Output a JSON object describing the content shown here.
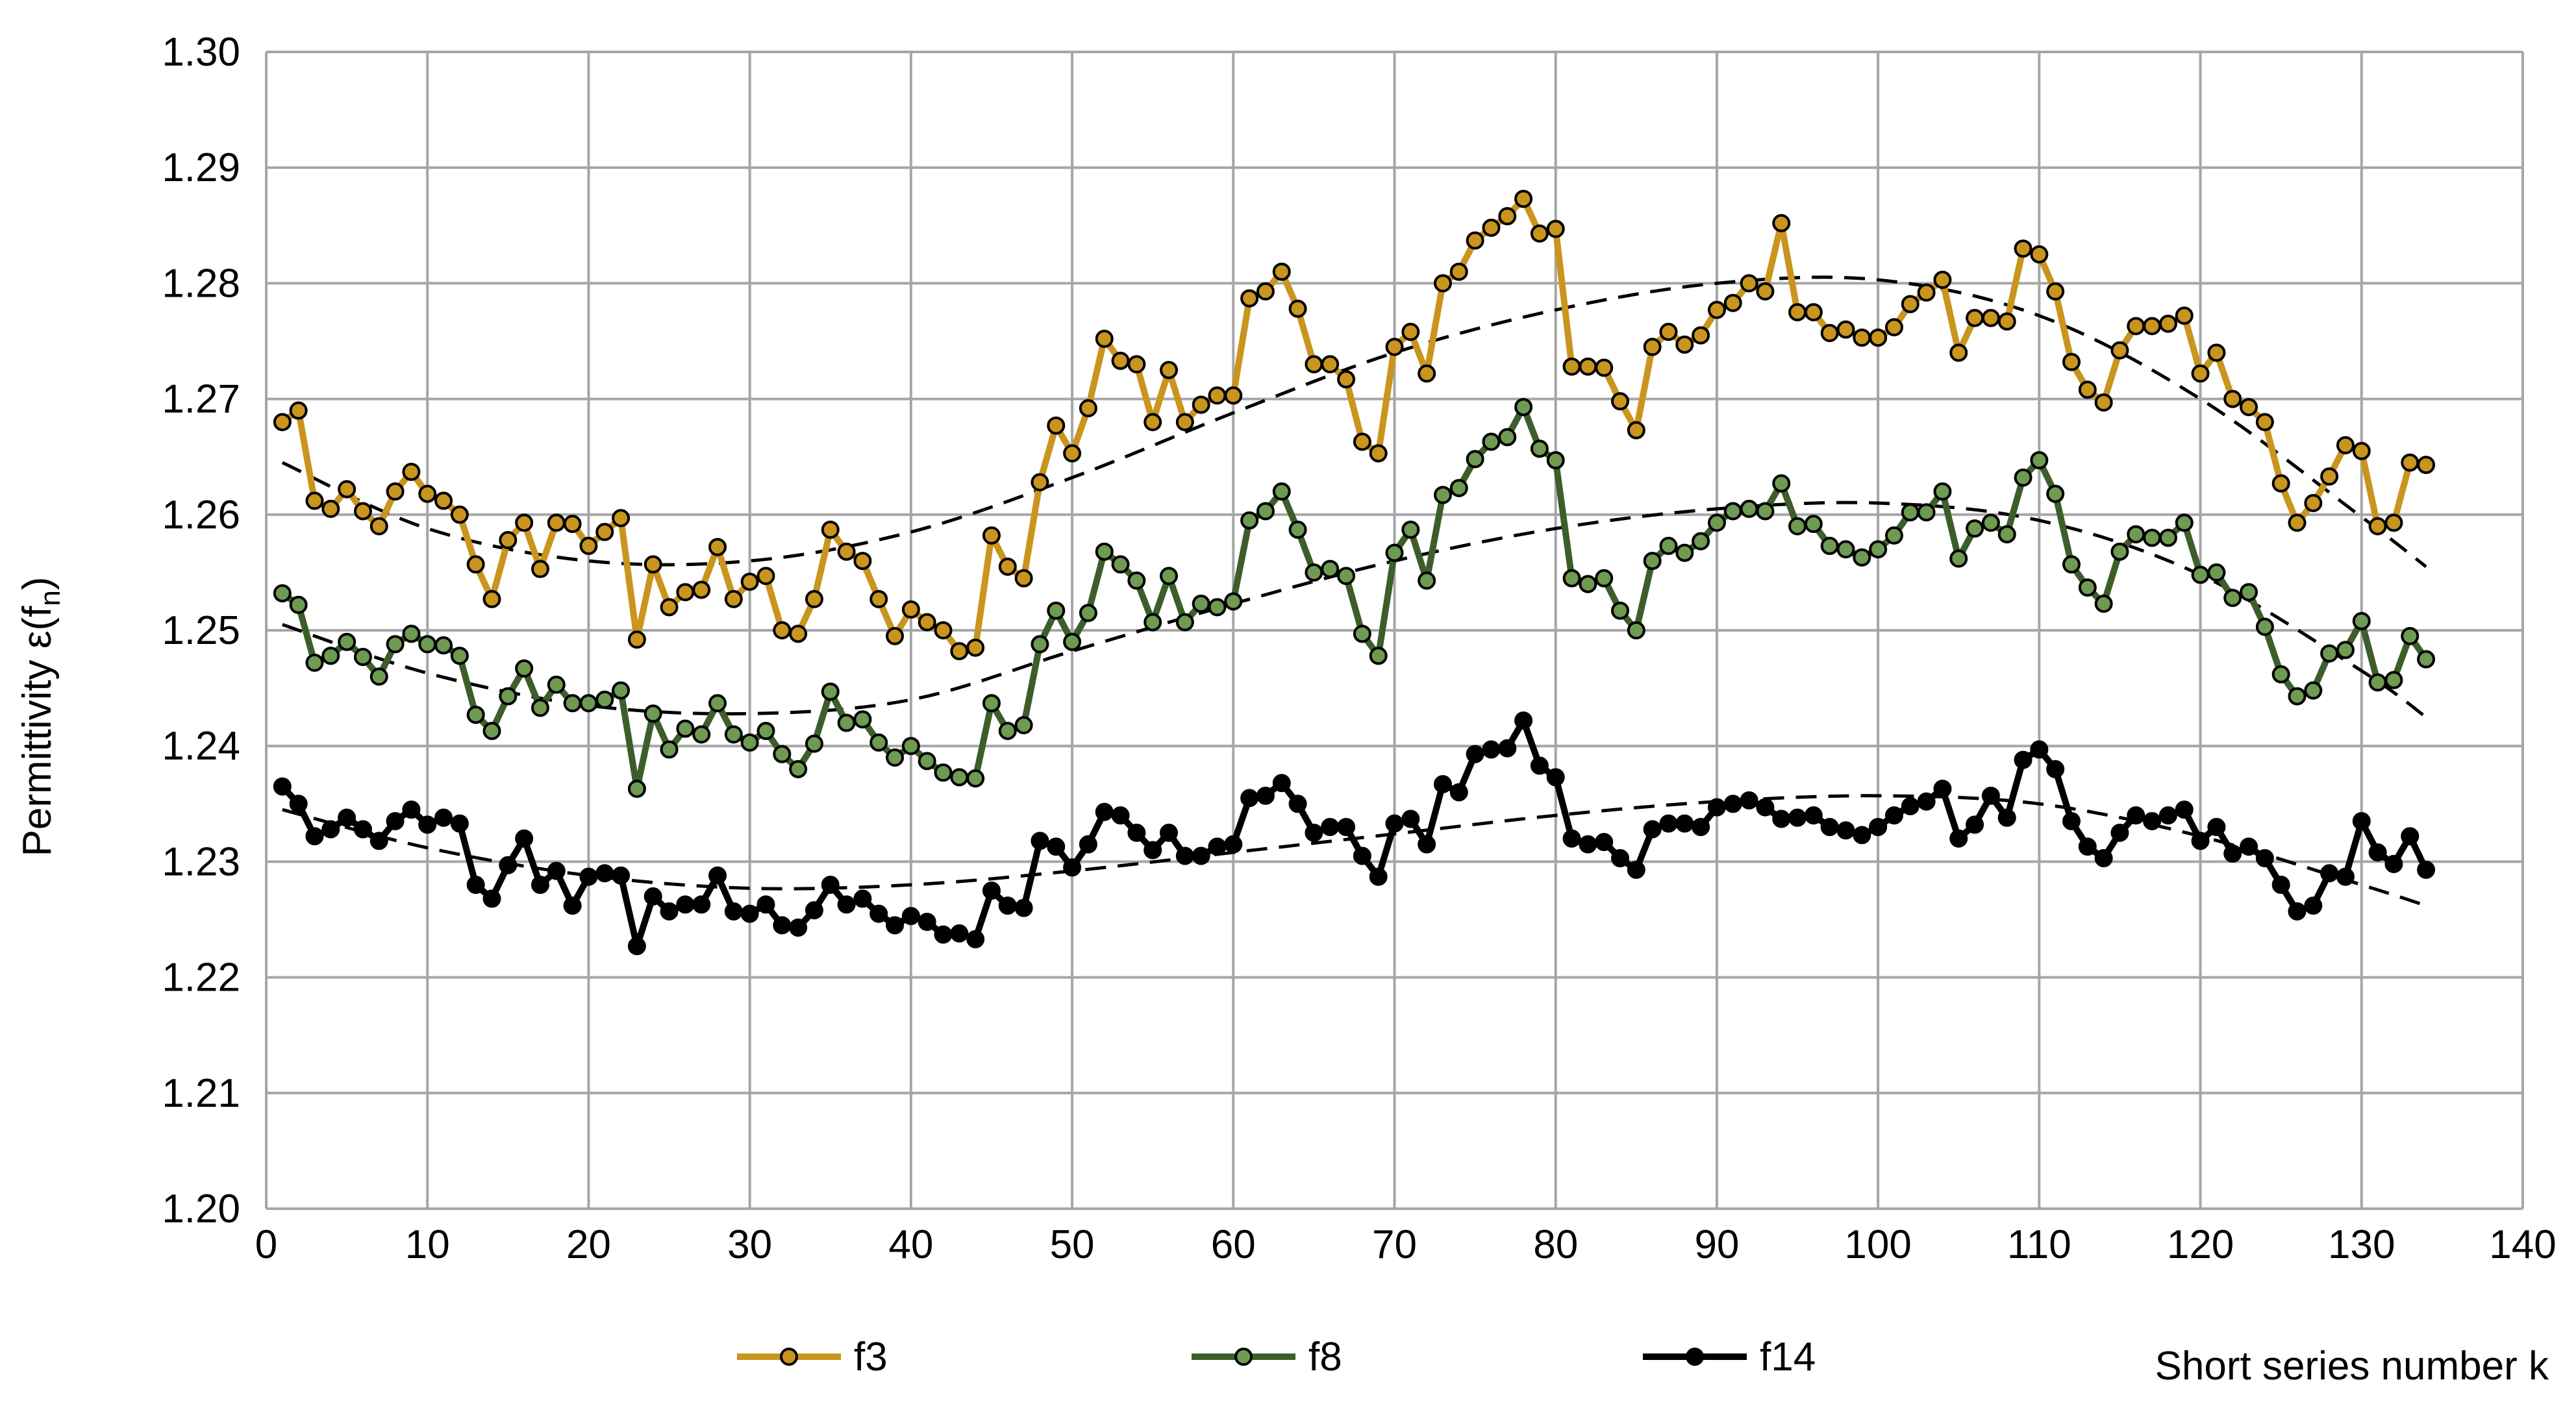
{
  "chart_data": {
    "type": "line",
    "title": "",
    "xlabel": "Short series number k",
    "ylabel_main": "Permittivity ε(f",
    "ylabel_sub": "n",
    "ylabel_end": ")",
    "xlim": [
      0,
      140
    ],
    "ylim": [
      1.2,
      1.3
    ],
    "xticks": [
      0,
      10,
      20,
      30,
      40,
      50,
      60,
      70,
      80,
      90,
      100,
      110,
      120,
      130,
      140
    ],
    "xtick_labels": [
      "0",
      "10",
      "20",
      "30",
      "40",
      "50",
      "60",
      "70",
      "80",
      "90",
      "100",
      "110",
      "120",
      "130",
      "140"
    ],
    "yticks": [
      1.2,
      1.21,
      1.22,
      1.23,
      1.24,
      1.25,
      1.26,
      1.27,
      1.28,
      1.29,
      1.3
    ],
    "ytick_labels": [
      "1.20",
      "1.21",
      "1.22",
      "1.23",
      "1.24",
      "1.25",
      "1.26",
      "1.27",
      "1.28",
      "1.29",
      "1.30"
    ],
    "grid": true,
    "legend_position": "bottom",
    "trend_style": "dashed polynomial fit per series",
    "series": [
      {
        "name": "f3",
        "color": "#c9951e",
        "marker_fill": "#c9951e",
        "values": [
          1.268,
          1.269,
          1.2612,
          1.2605,
          1.2622,
          1.2603,
          1.259,
          1.262,
          1.2637,
          1.2618,
          1.2612,
          1.26,
          1.2557,
          1.2527,
          1.2578,
          1.2593,
          1.2553,
          1.2593,
          1.2592,
          1.2573,
          1.2585,
          1.2597,
          1.2492,
          1.2557,
          1.252,
          1.2533,
          1.2535,
          1.2572,
          1.2527,
          1.2542,
          1.2547,
          1.25,
          1.2497,
          1.2527,
          1.2587,
          1.2568,
          1.256,
          1.2527,
          1.2495,
          1.2518,
          1.2507,
          1.25,
          1.2482,
          1.2485,
          1.2582,
          1.2555,
          1.2545,
          1.2628,
          1.2677,
          1.2653,
          1.2692,
          1.2752,
          1.2733,
          1.273,
          1.268,
          1.2725,
          1.268,
          1.2695,
          1.2703,
          1.2703,
          1.2787,
          1.2793,
          1.281,
          1.2778,
          1.273,
          1.273,
          1.2717,
          1.2663,
          1.2653,
          1.2745,
          1.2758,
          1.2722,
          1.28,
          1.281,
          1.2837,
          1.2848,
          1.2858,
          1.2873,
          1.2843,
          1.2847,
          1.2728,
          1.2728,
          1.2727,
          1.2698,
          1.2673,
          1.2745,
          1.2758,
          1.2747,
          1.2755,
          1.2777,
          1.2783,
          1.28,
          1.2793,
          1.2852,
          1.2775,
          1.2775,
          1.2757,
          1.276,
          1.2753,
          1.2753,
          1.2762,
          1.2782,
          1.2792,
          1.2803,
          1.274,
          1.277,
          1.277,
          1.2767,
          1.283,
          1.2825,
          1.2793,
          1.2732,
          1.2708,
          1.2697,
          1.2742,
          1.2763,
          1.2763,
          1.2765,
          1.2772,
          1.2722,
          1.274,
          1.27,
          1.2693,
          1.268,
          1.2627,
          1.2593,
          1.261,
          1.2633,
          1.266,
          1.2655,
          1.259,
          1.2593,
          1.2645,
          1.2643
        ]
      },
      {
        "name": "f8",
        "color": "#3d5e2b",
        "marker_fill": "#6e9a52",
        "values": [
          1.2532,
          1.2522,
          1.2472,
          1.2478,
          1.249,
          1.2477,
          1.246,
          1.2488,
          1.2497,
          1.2488,
          1.2487,
          1.2478,
          1.2427,
          1.2413,
          1.2443,
          1.2467,
          1.2433,
          1.2453,
          1.2437,
          1.2437,
          1.244,
          1.2448,
          1.2363,
          1.2428,
          1.2397,
          1.2415,
          1.241,
          1.2437,
          1.241,
          1.2403,
          1.2413,
          1.2393,
          1.238,
          1.2402,
          1.2447,
          1.242,
          1.2423,
          1.2403,
          1.239,
          1.24,
          1.2387,
          1.2377,
          1.2373,
          1.2372,
          1.2437,
          1.2413,
          1.2418,
          1.2488,
          1.2517,
          1.249,
          1.2515,
          1.2568,
          1.2557,
          1.2543,
          1.2507,
          1.2547,
          1.2507,
          1.2523,
          1.252,
          1.2525,
          1.2595,
          1.2603,
          1.262,
          1.2587,
          1.255,
          1.2553,
          1.2547,
          1.2497,
          1.2478,
          1.2567,
          1.2587,
          1.2543,
          1.2617,
          1.2623,
          1.2648,
          1.2663,
          1.2667,
          1.2693,
          1.2657,
          1.2647,
          1.2545,
          1.254,
          1.2545,
          1.2517,
          1.25,
          1.256,
          1.2573,
          1.2567,
          1.2577,
          1.2593,
          1.2603,
          1.2605,
          1.2603,
          1.2627,
          1.259,
          1.2592,
          1.2573,
          1.257,
          1.2563,
          1.257,
          1.2582,
          1.2602,
          1.2602,
          1.262,
          1.2562,
          1.2588,
          1.2593,
          1.2583,
          1.2632,
          1.2647,
          1.2618,
          1.2557,
          1.2537,
          1.2523,
          1.2568,
          1.2583,
          1.258,
          1.258,
          1.2593,
          1.2548,
          1.255,
          1.2528,
          1.2533,
          1.2503,
          1.2462,
          1.2443,
          1.2448,
          1.248,
          1.2483,
          1.2508,
          1.2455,
          1.2457,
          1.2495,
          1.2475
        ]
      },
      {
        "name": "f14",
        "color": "#000000",
        "marker_fill": "#000000",
        "values": [
          1.2365,
          1.235,
          1.2322,
          1.2328,
          1.2338,
          1.2328,
          1.2318,
          1.2335,
          1.2345,
          1.2332,
          1.2338,
          1.2333,
          1.228,
          1.2268,
          1.2297,
          1.232,
          1.228,
          1.2292,
          1.2262,
          1.2287,
          1.229,
          1.2288,
          1.2227,
          1.227,
          1.2257,
          1.2263,
          1.2263,
          1.2288,
          1.2257,
          1.2255,
          1.2263,
          1.2245,
          1.2243,
          1.2258,
          1.228,
          1.2263,
          1.2268,
          1.2255,
          1.2245,
          1.2253,
          1.2248,
          1.2237,
          1.2238,
          1.2233,
          1.2275,
          1.2262,
          1.226,
          1.2318,
          1.2313,
          1.2295,
          1.2315,
          1.2343,
          1.234,
          1.2325,
          1.231,
          1.2325,
          1.2305,
          1.2305,
          1.2313,
          1.2315,
          1.2355,
          1.2357,
          1.2368,
          1.235,
          1.2325,
          1.233,
          1.233,
          1.2305,
          1.2287,
          1.2333,
          1.2337,
          1.2315,
          1.2367,
          1.236,
          1.2393,
          1.2397,
          1.2398,
          1.2422,
          1.2383,
          1.2373,
          1.232,
          1.2315,
          1.2317,
          1.2303,
          1.2293,
          1.2328,
          1.2333,
          1.2333,
          1.233,
          1.2347,
          1.235,
          1.2353,
          1.2347,
          1.2337,
          1.2338,
          1.234,
          1.233,
          1.2327,
          1.2323,
          1.233,
          1.234,
          1.2348,
          1.2352,
          1.2363,
          1.232,
          1.2332,
          1.2357,
          1.2338,
          1.2388,
          1.2397,
          1.238,
          1.2335,
          1.2313,
          1.2303,
          1.2325,
          1.234,
          1.2335,
          1.234,
          1.2345,
          1.2318,
          1.233,
          1.2307,
          1.2313,
          1.2303,
          1.228,
          1.2257,
          1.2262,
          1.229,
          1.2287,
          1.2335,
          1.2308,
          1.2298,
          1.2322,
          1.2293
        ]
      }
    ],
    "trend_lines": [
      {
        "series": "f3",
        "x": [
          1,
          10,
          20,
          30,
          40,
          50,
          60,
          70,
          80,
          90,
          100,
          110,
          120,
          130,
          134
        ],
        "values": [
          1.2645,
          1.2588,
          1.256,
          1.256,
          1.2585,
          1.2632,
          1.2688,
          1.274,
          1.2777,
          1.28,
          1.2803,
          1.2772,
          1.27,
          1.2598,
          1.2555
        ]
      },
      {
        "series": "f8",
        "x": [
          1,
          10,
          20,
          30,
          40,
          50,
          60,
          70,
          80,
          90,
          100,
          110,
          120,
          130,
          134
        ],
        "values": [
          1.2505,
          1.2463,
          1.2435,
          1.2428,
          1.244,
          1.2482,
          1.2523,
          1.256,
          1.2588,
          1.2605,
          1.261,
          1.2595,
          1.2548,
          1.2465,
          1.2425
        ]
      },
      {
        "series": "f14",
        "x": [
          1,
          10,
          20,
          30,
          40,
          50,
          60,
          70,
          80,
          90,
          100,
          110,
          120,
          130,
          134
        ],
        "values": [
          1.2345,
          1.2312,
          1.2288,
          1.2277,
          1.228,
          1.2292,
          1.2308,
          1.2324,
          1.234,
          1.2352,
          1.2357,
          1.235,
          1.2322,
          1.228,
          1.2262
        ]
      }
    ]
  }
}
